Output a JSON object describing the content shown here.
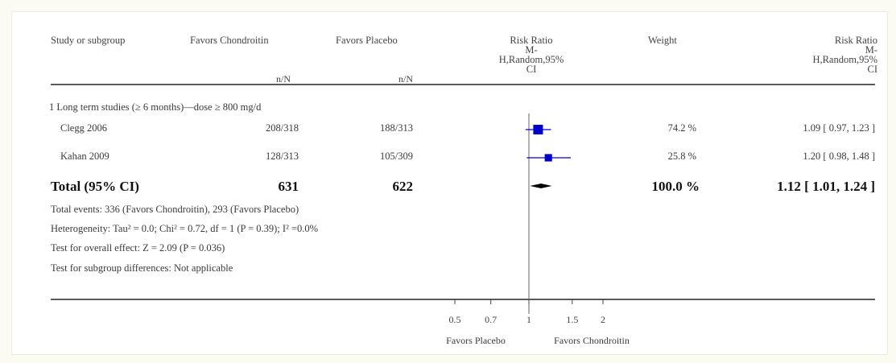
{
  "colors": {
    "background": "#fbfbf1",
    "panel": "#ffffff",
    "marker": "#0000cc",
    "diamond": "#000000",
    "rule": "#222222"
  },
  "headers": {
    "study": "Study or subgroup",
    "exp": "Favors Chondroitin",
    "ctrl": "Favors Placebo",
    "exp_sub": "n/N",
    "ctrl_sub": "n/N",
    "rr_plot": [
      "Risk Ratio",
      "M-",
      "H,Random,95%",
      "CI"
    ],
    "weight": "Weight",
    "rr_val": [
      "Risk Ratio",
      "M-",
      "H,Random,95%",
      "CI"
    ]
  },
  "subgroup_title": "1 Long term studies (≥ 6 months)—dose ≥ 800 mg/d",
  "studies": [
    {
      "name": "Clegg 2006",
      "exp": "208/318",
      "ctrl": "188/313",
      "weight": "74.2 %",
      "ci_text": "1.09 [ 0.97, 1.23 ]"
    },
    {
      "name": "Kahan 2009",
      "exp": "128/313",
      "ctrl": "105/309",
      "weight": "25.8 %",
      "ci_text": "1.20 [ 0.98, 1.48 ]"
    }
  ],
  "total": {
    "label": "Total (95% CI)",
    "exp": "631",
    "ctrl": "622",
    "weight": "100.0 %",
    "ci_text": "1.12 [ 1.01, 1.24 ]"
  },
  "notes": [
    "Total events: 336 (Favors Chondroitin), 293 (Favors Placebo)",
    "Heterogeneity: Tau² = 0.0; Chi² = 0.72, df = 1 (P = 0.39); I² =0.0%",
    "Test for overall effect: Z = 2.09 (P = 0.036)",
    "Test for subgroup differences: Not applicable"
  ],
  "axis": {
    "ticks": [
      {
        "value": 0.5,
        "label": "0.5"
      },
      {
        "value": 0.7,
        "label": "0.7"
      },
      {
        "value": 1,
        "label": "1"
      },
      {
        "value": 1.5,
        "label": "1.5"
      },
      {
        "value": 2,
        "label": "2"
      }
    ],
    "favors_left": "Favors Placebo",
    "favors_right": "Favors Chondroitin"
  },
  "chart_data": {
    "type": "forest",
    "x_scale": "log",
    "xlim": [
      0.5,
      2
    ],
    "null_line": 1,
    "studies": [
      {
        "name": "Clegg 2006",
        "rr": 1.09,
        "lower": 0.97,
        "upper": 1.23,
        "weight": 74.2
      },
      {
        "name": "Kahan 2009",
        "rr": 1.2,
        "lower": 0.98,
        "upper": 1.48,
        "weight": 25.8
      }
    ],
    "pooled": {
      "rr": 1.12,
      "lower": 1.01,
      "upper": 1.24
    }
  }
}
